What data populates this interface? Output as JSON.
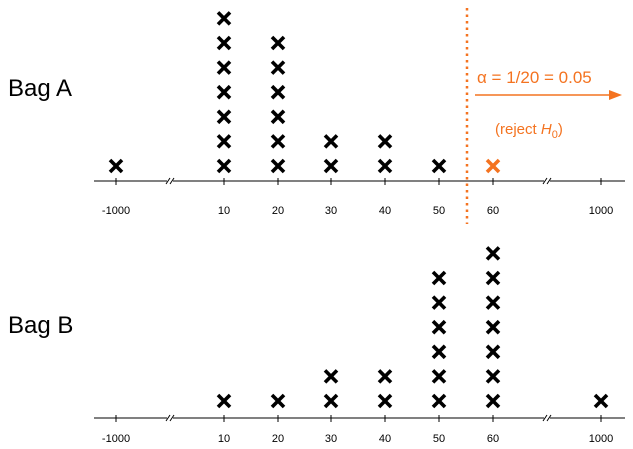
{
  "chart_data": [
    {
      "type": "dot",
      "row_label": "Bag A",
      "categories": [
        "-1000",
        "10",
        "20",
        "30",
        "40",
        "50",
        "60",
        "1000"
      ],
      "counts": [
        1,
        7,
        6,
        2,
        2,
        1,
        1,
        0
      ],
      "highlighted": [
        {
          "category": "60",
          "count": 1,
          "color": "#f47320"
        }
      ]
    },
    {
      "type": "dot",
      "row_label": "Bag B",
      "categories": [
        "-1000",
        "10",
        "20",
        "30",
        "40",
        "50",
        "60",
        "1000"
      ],
      "counts": [
        0,
        1,
        1,
        2,
        2,
        6,
        7,
        1
      ]
    }
  ],
  "threshold": {
    "position": "between 50 and 60",
    "color": "#f47320",
    "style": "dotted",
    "alpha_text": "α = 1/20 = 0.05",
    "reject_prefix": "(reject ",
    "reject_var": "H",
    "reject_sub": "0",
    "reject_suffix": ")"
  },
  "colors": {
    "mark": "#000000",
    "accent": "#f47320"
  }
}
